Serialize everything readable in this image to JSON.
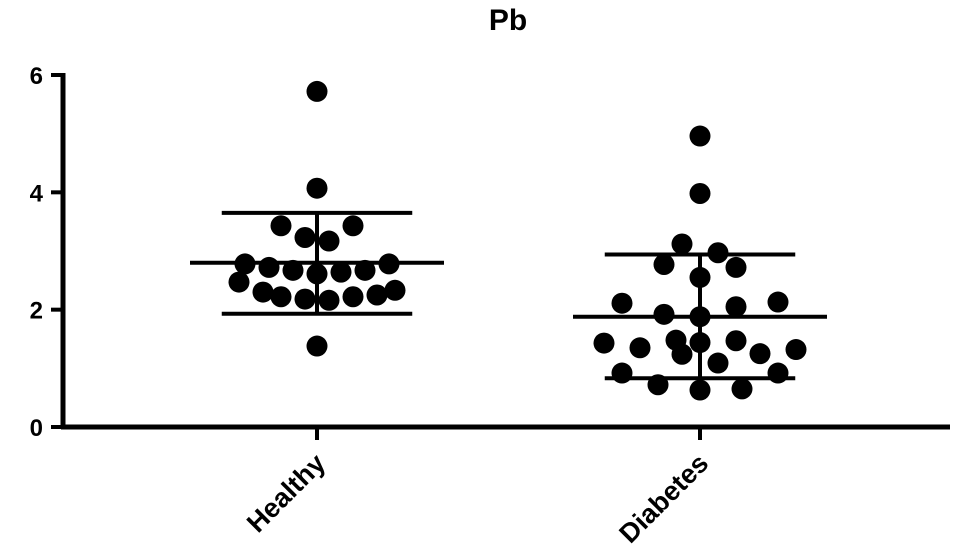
{
  "chart_data": {
    "type": "scatter",
    "title": "Pb",
    "xlabel": "",
    "ylabel": "",
    "ylim": [
      0,
      6
    ],
    "yticks": [
      0,
      2,
      4,
      6
    ],
    "categories": [
      "Healthy",
      "Diabetes"
    ],
    "grid": false,
    "legend": "none",
    "groups": [
      {
        "category": "Healthy",
        "mean": 2.8,
        "sd_upper": 3.65,
        "sd_lower": 1.93,
        "points": [
          {
            "offset": 0,
            "y": 5.72
          },
          {
            "offset": 0,
            "y": 4.07
          },
          {
            "offset": -3,
            "y": 3.43
          },
          {
            "offset": 3,
            "y": 3.43
          },
          {
            "offset": -1,
            "y": 3.23
          },
          {
            "offset": 1,
            "y": 3.17
          },
          {
            "offset": -6,
            "y": 2.78
          },
          {
            "offset": 6,
            "y": 2.78
          },
          {
            "offset": -4,
            "y": 2.72
          },
          {
            "offset": -2,
            "y": 2.67
          },
          {
            "offset": 2,
            "y": 2.64
          },
          {
            "offset": 4,
            "y": 2.67
          },
          {
            "offset": 0,
            "y": 2.61
          },
          {
            "offset": -6.5,
            "y": 2.47
          },
          {
            "offset": 6.5,
            "y": 2.33
          },
          {
            "offset": -4.5,
            "y": 2.3
          },
          {
            "offset": -3,
            "y": 2.22
          },
          {
            "offset": 3,
            "y": 2.22
          },
          {
            "offset": -1,
            "y": 2.18
          },
          {
            "offset": 1,
            "y": 2.16
          },
          {
            "offset": 5,
            "y": 2.25
          },
          {
            "offset": 0,
            "y": 1.38
          }
        ]
      },
      {
        "category": "Diabetes",
        "mean": 1.88,
        "sd_upper": 2.94,
        "sd_lower": 0.83,
        "points": [
          {
            "offset": 0,
            "y": 4.96
          },
          {
            "offset": 0,
            "y": 3.98
          },
          {
            "offset": -1.5,
            "y": 3.12
          },
          {
            "offset": 1.5,
            "y": 2.97
          },
          {
            "offset": -3,
            "y": 2.77
          },
          {
            "offset": 3,
            "y": 2.72
          },
          {
            "offset": 0,
            "y": 2.55
          },
          {
            "offset": -6.5,
            "y": 2.11
          },
          {
            "offset": 6.5,
            "y": 2.13
          },
          {
            "offset": 3,
            "y": 2.05
          },
          {
            "offset": -3,
            "y": 1.92
          },
          {
            "offset": 0,
            "y": 1.88
          },
          {
            "offset": -8,
            "y": 1.43
          },
          {
            "offset": -5,
            "y": 1.35
          },
          {
            "offset": -2,
            "y": 1.48
          },
          {
            "offset": 0,
            "y": 1.44
          },
          {
            "offset": 3,
            "y": 1.47
          },
          {
            "offset": 5,
            "y": 1.25
          },
          {
            "offset": 8,
            "y": 1.32
          },
          {
            "offset": -1.5,
            "y": 1.24
          },
          {
            "offset": 1.5,
            "y": 1.09
          },
          {
            "offset": -6.5,
            "y": 0.92
          },
          {
            "offset": 6.5,
            "y": 0.92
          },
          {
            "offset": -3.5,
            "y": 0.72
          },
          {
            "offset": 0,
            "y": 0.63
          },
          {
            "offset": 3.5,
            "y": 0.65
          }
        ]
      }
    ]
  }
}
